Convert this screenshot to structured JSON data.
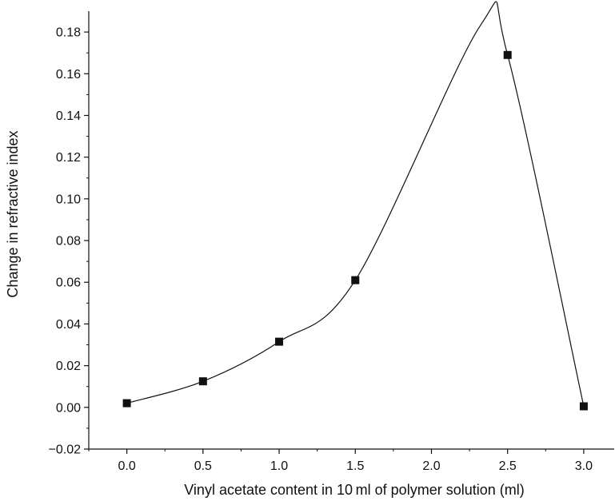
{
  "chart_data": {
    "type": "scatter",
    "title": "",
    "xlabel": "Vinyl acetate content in 10 ml of polymer solution (ml)",
    "ylabel": "Change in refractive index",
    "xlim": [
      -0.25,
      3.2
    ],
    "ylim": [
      -0.02,
      0.19
    ],
    "x_ticks": [
      0.0,
      0.5,
      1.0,
      1.5,
      2.0,
      2.5,
      3.0
    ],
    "x_tick_labels": [
      "0.0",
      "0.5",
      "1.0",
      "1.5",
      "2.0",
      "2.5",
      "3.0"
    ],
    "y_ticks": [
      -0.02,
      0.0,
      0.02,
      0.04,
      0.06,
      0.08,
      0.1,
      0.12,
      0.14,
      0.16,
      0.18
    ],
    "y_tick_labels": [
      "−0.02",
      "0.00",
      "0.02",
      "0.04",
      "0.06",
      "0.08",
      "0.10",
      "0.12",
      "0.14",
      "0.16",
      "0.18"
    ],
    "grid": false,
    "legend": "none",
    "series": [
      {
        "marker": "square",
        "color": "#111111",
        "x": [
          0.0,
          0.5,
          1.0,
          1.5,
          2.5,
          3.0
        ],
        "y": [
          0.002,
          0.0125,
          0.0315,
          0.061,
          0.169,
          0.0005
        ]
      }
    ],
    "fit_curve": {
      "style": "smooth spline",
      "color": "#111111",
      "peak": {
        "x": 2.32,
        "y": 0.183
      }
    }
  }
}
